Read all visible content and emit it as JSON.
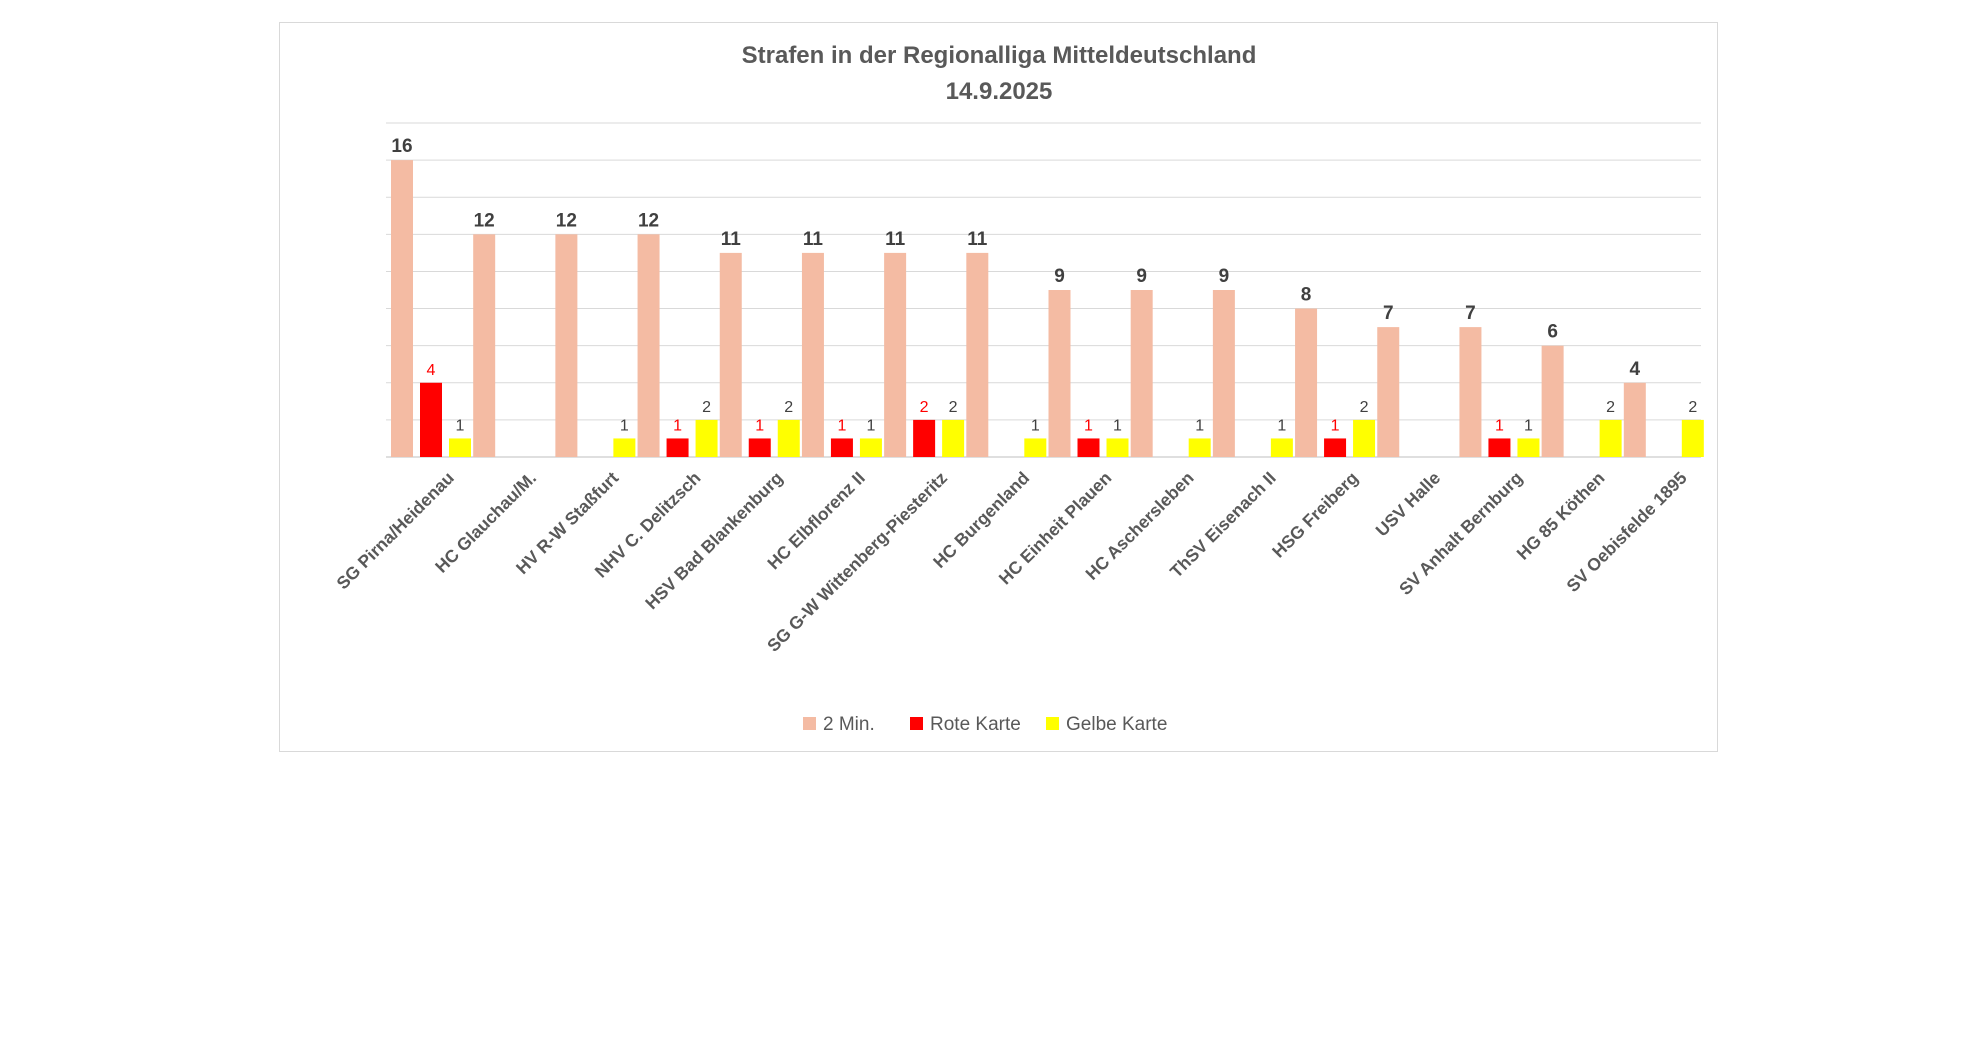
{
  "chart_data": {
    "type": "bar",
    "title": "Strafen in der Regionalliga Mitteldeutschland",
    "subtitle": "14.9.2025",
    "categories": [
      "SG Pirna/Heidenau",
      "HC Glauchau/M.",
      "HV R-W Staßfurt",
      "NHV C. Delitzsch",
      "HSV Bad Blankenburg",
      "HC Elbflorenz II",
      "SG G-W Wittenberg-Piesteritz",
      "HC Burgenland",
      "HC Einheit Plauen",
      "HC Aschersleben",
      "ThSV Eisenach II",
      "HSG Freiberg",
      "USV Halle",
      "SV Anhalt Bernburg",
      "HG 85 Köthen",
      "SV Oebisfelde 1895"
    ],
    "series": [
      {
        "name": "2 Min.",
        "color": "#f4bba3",
        "values": [
          16,
          12,
          12,
          12,
          11,
          11,
          11,
          11,
          9,
          9,
          9,
          8,
          7,
          7,
          6,
          4
        ]
      },
      {
        "name": "Rote Karte",
        "color": "#ff0000",
        "values": [
          4,
          null,
          null,
          1,
          1,
          1,
          2,
          null,
          1,
          null,
          null,
          1,
          null,
          1,
          null,
          null
        ]
      },
      {
        "name": "Gelbe Karte",
        "color": "#ffff00",
        "values": [
          1,
          null,
          1,
          2,
          2,
          1,
          2,
          1,
          1,
          1,
          1,
          2,
          null,
          1,
          2,
          2
        ]
      }
    ],
    "ylim": [
      0,
      18
    ],
    "grid": true,
    "legend_position": "bottom",
    "data_label_colors": {
      "2 Min.": "#404040",
      "Rote Karte": "#ff0000",
      "Gelbe Karte": "#404040"
    }
  }
}
